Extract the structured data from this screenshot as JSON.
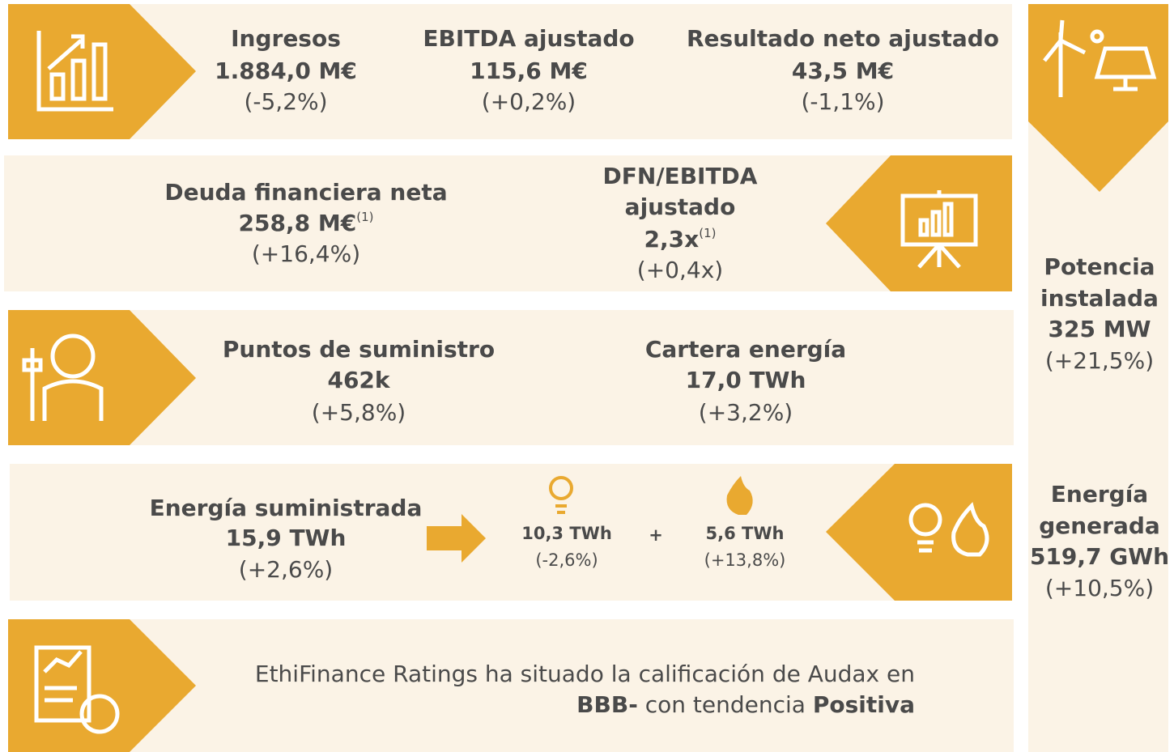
{
  "top": [
    {
      "name": "Ingresos",
      "value": "1.884,0 M€",
      "change": "(-5,2%)"
    },
    {
      "name": "EBITDA ajustado",
      "value": "115,6 M€",
      "change": "(+0,2%)"
    },
    {
      "name": "Resultado neto ajustado",
      "value": "43,5 M€",
      "change": "(-1,1%)"
    }
  ],
  "debt": {
    "name": "Deuda financiera neta",
    "value": "258,8 M€",
    "note": "(1)",
    "change": "(+16,4%)"
  },
  "ratio": {
    "name_lines": [
      "DFN/EBITDA",
      "ajustado"
    ],
    "value": "2,3x",
    "note": "(1)",
    "change": "(+0,4x)"
  },
  "supply": [
    {
      "name": "Puntos de suministro",
      "value": "462k",
      "change": "(+5,8%)"
    },
    {
      "name": "Cartera energía",
      "value": "17,0 TWh",
      "change": "(+3,2%)"
    }
  ],
  "energy": {
    "name": "Energía suministrada",
    "value": "15,9 TWh",
    "change": "(+2,6%)",
    "plus": "+",
    "parts": [
      {
        "value": "10,3 TWh",
        "change": "(-2,6%)"
      },
      {
        "value": "5,6 TWh",
        "change": "(+13,8%)"
      }
    ]
  },
  "rating": {
    "text": "EthiFinance Ratings ha situado la calificación de Audax en",
    "grade": "BBB-",
    "middle": "con tendencia",
    "trend": "Positiva"
  },
  "side": [
    {
      "name_lines": [
        "Potencia",
        "instalada"
      ],
      "value": "325 MW",
      "change": "(+21,5%)"
    },
    {
      "name_lines": [
        "Energía",
        "generada"
      ],
      "value": "519,7 GWh",
      "change": "(+10,5%)"
    }
  ]
}
